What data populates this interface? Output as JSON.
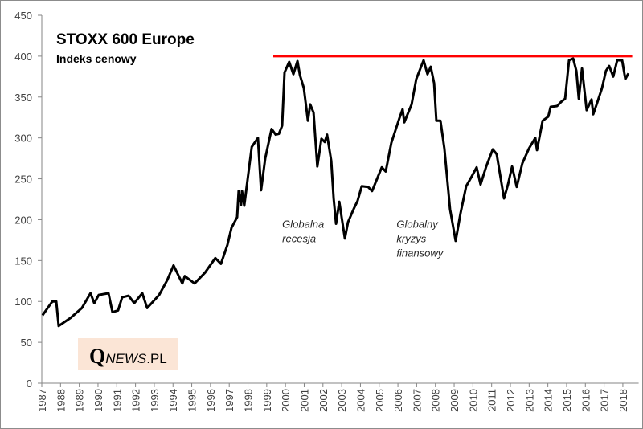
{
  "chart_data": {
    "type": "line",
    "title": "STOXX 600 Europe",
    "subtitle": "Indeks cenowy",
    "xlabel": "",
    "ylabel": "",
    "xlim": [
      1987,
      2018.5
    ],
    "ylim": [
      0,
      450
    ],
    "y_ticks": [
      "0",
      "50",
      "100",
      "150",
      "200",
      "250",
      "300",
      "350",
      "400",
      "450"
    ],
    "x_ticks": [
      "1987",
      "1988",
      "1989",
      "1990",
      "1991",
      "1992",
      "1993",
      "1994",
      "1995",
      "1996",
      "1997",
      "1998",
      "1999",
      "2000",
      "2001",
      "2002",
      "2003",
      "2004",
      "2005",
      "2006",
      "2007",
      "2008",
      "2009",
      "2010",
      "2011",
      "2012",
      "2013",
      "2014",
      "2015",
      "2016",
      "2017",
      "2018"
    ],
    "grid": false,
    "legend": "none",
    "series": [
      {
        "color": "#000000",
        "points": [
          [
            1987.04,
            83
          ],
          [
            1987.56,
            100
          ],
          [
            1987.77,
            100
          ],
          [
            1987.9,
            70
          ],
          [
            1988.54,
            80
          ],
          [
            1989.14,
            92
          ],
          [
            1989.6,
            110
          ],
          [
            1989.8,
            98
          ],
          [
            1990.04,
            108
          ],
          [
            1990.56,
            110
          ],
          [
            1990.77,
            87
          ],
          [
            1991.07,
            89
          ],
          [
            1991.29,
            105
          ],
          [
            1991.63,
            107
          ],
          [
            1991.93,
            98
          ],
          [
            1992.36,
            110
          ],
          [
            1992.62,
            92
          ],
          [
            1993.26,
            108
          ],
          [
            1993.69,
            126
          ],
          [
            1994.03,
            144
          ],
          [
            1994.5,
            122
          ],
          [
            1994.63,
            131
          ],
          [
            1995.15,
            122
          ],
          [
            1995.7,
            135
          ],
          [
            1996.26,
            153
          ],
          [
            1996.56,
            146
          ],
          [
            1996.9,
            169
          ],
          [
            1997.12,
            190
          ],
          [
            1997.42,
            203
          ],
          [
            1997.5,
            235
          ],
          [
            1997.63,
            218
          ],
          [
            1997.68,
            235
          ],
          [
            1997.8,
            217
          ],
          [
            1998.2,
            289
          ],
          [
            1998.53,
            300
          ],
          [
            1998.7,
            236
          ],
          [
            1998.92,
            275
          ],
          [
            1999.26,
            311
          ],
          [
            1999.48,
            304
          ],
          [
            1999.65,
            305
          ],
          [
            1999.82,
            315
          ],
          [
            1999.95,
            380
          ],
          [
            2000.2,
            393
          ],
          [
            2000.42,
            378
          ],
          [
            2000.64,
            394
          ],
          [
            2000.77,
            377
          ],
          [
            2000.98,
            361
          ],
          [
            2001.2,
            321
          ],
          [
            2001.32,
            341
          ],
          [
            2001.5,
            331
          ],
          [
            2001.7,
            265
          ],
          [
            2001.92,
            299
          ],
          [
            2002.1,
            295
          ],
          [
            2002.22,
            304
          ],
          [
            2002.44,
            272
          ],
          [
            2002.57,
            226
          ],
          [
            2002.7,
            195
          ],
          [
            2002.87,
            222
          ],
          [
            2003.17,
            177
          ],
          [
            2003.34,
            197
          ],
          [
            2003.64,
            213
          ],
          [
            2003.85,
            223
          ],
          [
            2004.07,
            241
          ],
          [
            2004.41,
            240
          ],
          [
            2004.62,
            235
          ],
          [
            2005.14,
            264
          ],
          [
            2005.35,
            259
          ],
          [
            2005.65,
            294
          ],
          [
            2006.08,
            324
          ],
          [
            2006.25,
            335
          ],
          [
            2006.34,
            319
          ],
          [
            2006.73,
            341
          ],
          [
            2006.98,
            372
          ],
          [
            2007.37,
            395
          ],
          [
            2007.58,
            378
          ],
          [
            2007.75,
            387
          ],
          [
            2007.93,
            367
          ],
          [
            2008.05,
            321
          ],
          [
            2008.27,
            321
          ],
          [
            2008.48,
            287
          ],
          [
            2008.78,
            213
          ],
          [
            2009.08,
            174
          ],
          [
            2009.34,
            208
          ],
          [
            2009.64,
            241
          ],
          [
            2009.94,
            253
          ],
          [
            2010.2,
            264
          ],
          [
            2010.41,
            243
          ],
          [
            2010.71,
            265
          ],
          [
            2011.06,
            286
          ],
          [
            2011.27,
            280
          ],
          [
            2011.66,
            226
          ],
          [
            2011.87,
            243
          ],
          [
            2012.09,
            265
          ],
          [
            2012.34,
            240
          ],
          [
            2012.64,
            269
          ],
          [
            2012.99,
            287
          ],
          [
            2013.33,
            300
          ],
          [
            2013.42,
            285
          ],
          [
            2013.72,
            321
          ],
          [
            2014.02,
            326
          ],
          [
            2014.15,
            338
          ],
          [
            2014.49,
            339
          ],
          [
            2014.7,
            344
          ],
          [
            2014.92,
            348
          ],
          [
            2015.13,
            395
          ],
          [
            2015.35,
            397
          ],
          [
            2015.52,
            382
          ],
          [
            2015.65,
            348
          ],
          [
            2015.82,
            385
          ],
          [
            2016.07,
            334
          ],
          [
            2016.33,
            347
          ],
          [
            2016.42,
            329
          ],
          [
            2016.63,
            343
          ],
          [
            2016.89,
            361
          ],
          [
            2017.1,
            382
          ],
          [
            2017.27,
            388
          ],
          [
            2017.49,
            375
          ],
          [
            2017.7,
            395
          ],
          [
            2017.96,
            395
          ],
          [
            2018.13,
            372
          ],
          [
            2018.3,
            379
          ]
        ]
      }
    ],
    "reference_line": {
      "value": 400,
      "x_from": 1999.35,
      "x_to": 2018.5,
      "color": "#ff0000"
    },
    "annotations": [
      {
        "lines": [
          "Globalna",
          "recesja"
        ],
        "x": 2000,
        "y": 190
      },
      {
        "lines": [
          "Globalny",
          "kryzys",
          "finansowy"
        ],
        "x": 2006.1,
        "y": 190
      }
    ]
  },
  "watermark": {
    "q": "Q",
    "news": "NEWS",
    "pl": ".PL",
    "background": "#fbe5d6"
  }
}
